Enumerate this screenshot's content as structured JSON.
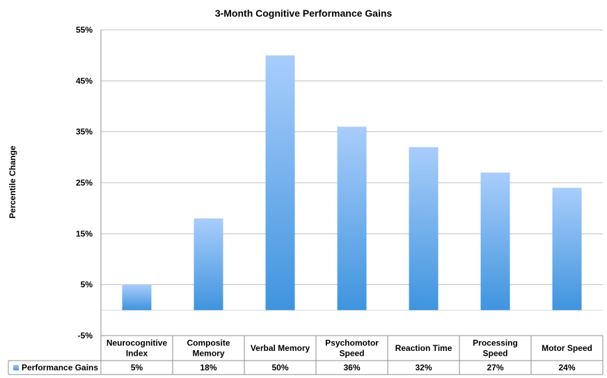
{
  "chart_data": {
    "type": "bar",
    "title": "3-Month Cognitive Performance Gains",
    "ylabel": "Percentile Change",
    "xlabel": "",
    "ylim": [
      -5,
      55
    ],
    "yticks": [
      "55%",
      "45%",
      "35%",
      "25%",
      "15%",
      "5%",
      "-5%"
    ],
    "ytick_values": [
      55,
      45,
      35,
      25,
      15,
      5,
      -5
    ],
    "grid": true,
    "categories": [
      [
        "Neurocognitive",
        "Index"
      ],
      [
        "Composite",
        "Memory"
      ],
      [
        "Verbal Memory"
      ],
      [
        "Psychomotor",
        "Speed"
      ],
      [
        "Reaction Time"
      ],
      [
        "Processing",
        "Speed"
      ],
      [
        "Motor Speed"
      ]
    ],
    "series": [
      {
        "name": "Performance Gains",
        "values": [
          5,
          18,
          50,
          36,
          32,
          27,
          24
        ],
        "labels": [
          "5%",
          "18%",
          "50%",
          "36%",
          "32%",
          "27%",
          "24%"
        ],
        "color_top": "#a9cdfb",
        "color_bottom": "#3f94de"
      }
    ],
    "legend": "data-table-left"
  }
}
